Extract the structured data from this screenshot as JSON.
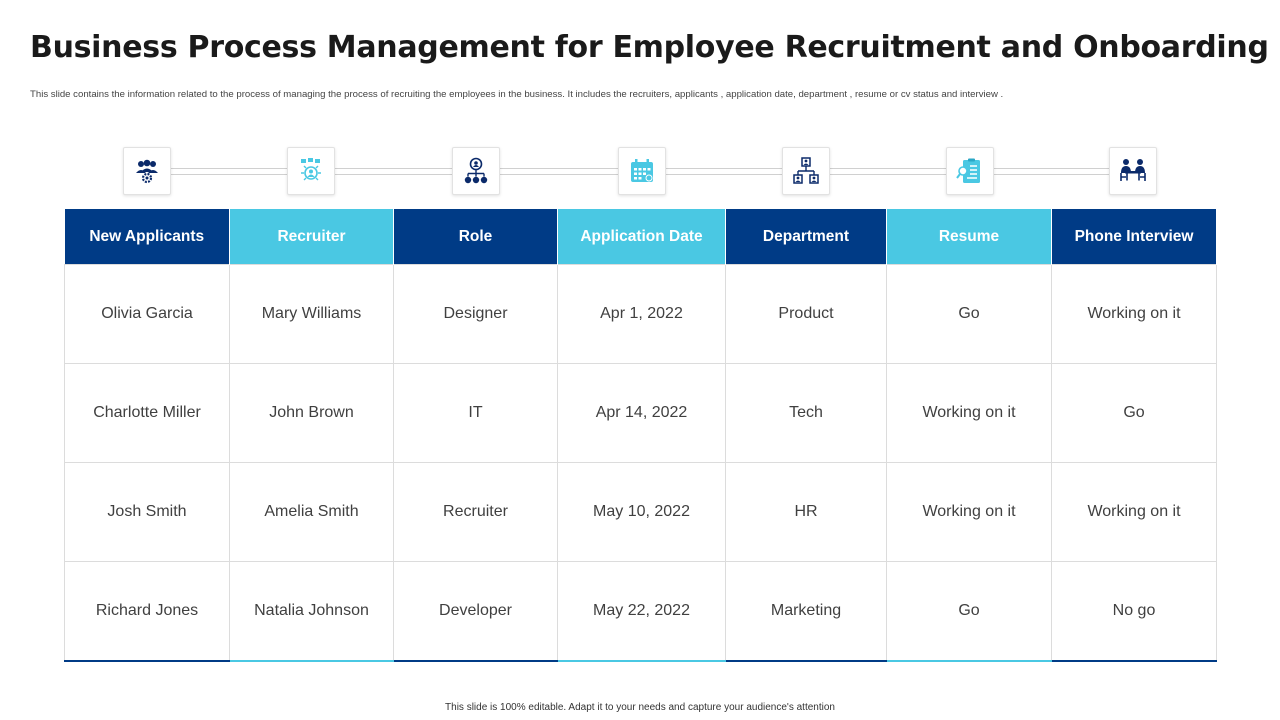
{
  "title": "Business Process Management for Employee Recruitment and Onboarding",
  "subtitle": "This slide contains the information related to the process of managing the process of recruiting the employees in the business. It includes the recruiters, applicants , application date, department , resume or cv status and interview .",
  "colors": {
    "dark": "#003b86",
    "light": "#4ac8e3"
  },
  "icons": [
    "team-settings-icon",
    "idea-people-icon",
    "org-network-icon",
    "calendar-icon",
    "org-chart-icon",
    "resume-icon",
    "interview-icon"
  ],
  "table": {
    "headers": [
      "New Applicants",
      "Recruiter",
      "Role",
      "Application Date",
      "Department",
      "Resume",
      "Phone Interview"
    ],
    "rows": [
      [
        "Olivia Garcia",
        "Mary Williams",
        "Designer",
        "Apr 1, 2022",
        "Product",
        "Go",
        "Working on it"
      ],
      [
        "Charlotte Miller",
        "John Brown",
        "IT",
        "Apr 14, 2022",
        "Tech",
        "Working on it",
        "Go"
      ],
      [
        "Josh Smith",
        "Amelia Smith",
        "Recruiter",
        "May 10, 2022",
        "HR",
        "Working on it",
        "Working on it"
      ],
      [
        "Richard Jones",
        "Natalia Johnson",
        "Developer",
        "May 22, 2022",
        "Marketing",
        "Go",
        "No go"
      ]
    ]
  },
  "footer": "This slide is 100% editable. Adapt it to your needs and capture your audience's attention"
}
